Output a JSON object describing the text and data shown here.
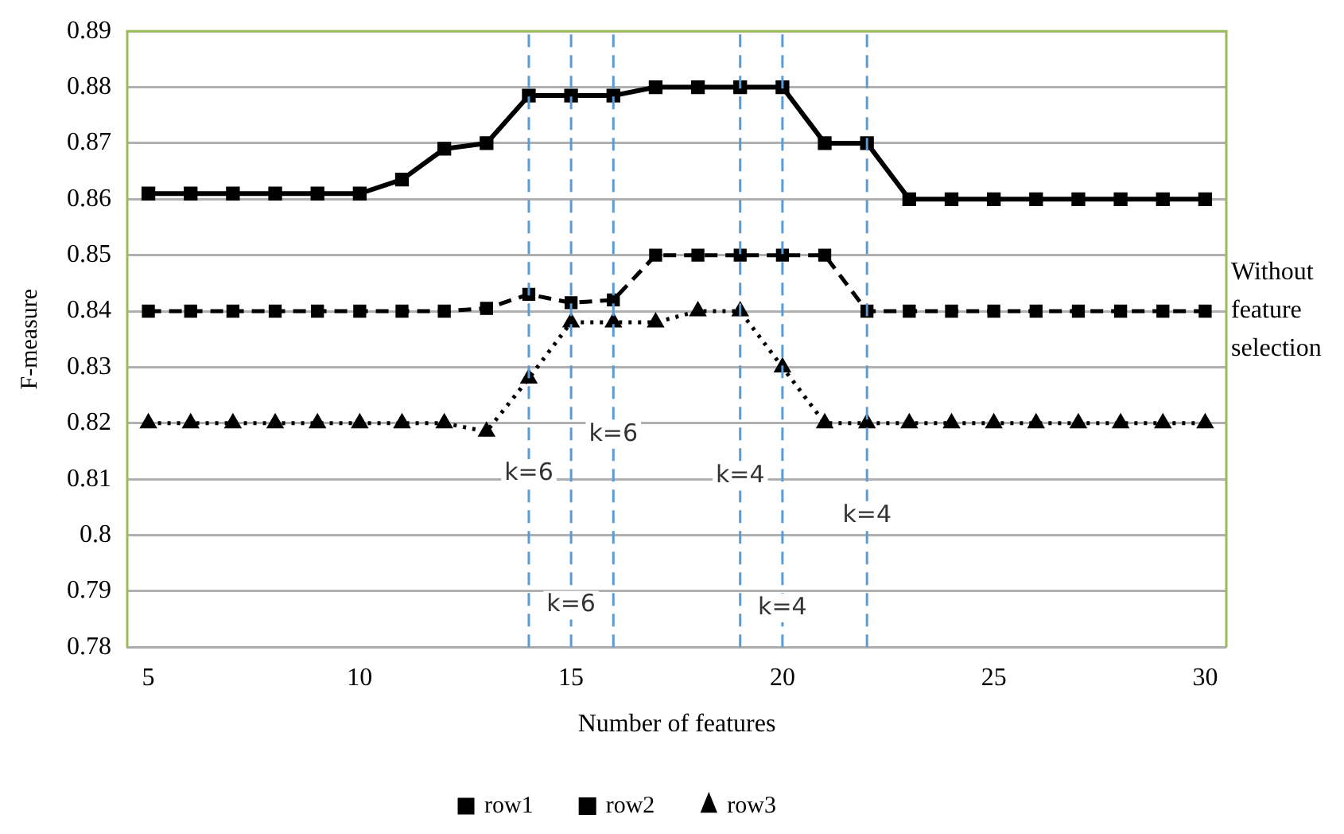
{
  "chart_data": {
    "type": "line",
    "xlabel": "Number of features",
    "ylabel": "F-measure",
    "x": [
      5,
      6,
      7,
      8,
      9,
      10,
      11,
      12,
      13,
      14,
      15,
      16,
      17,
      18,
      19,
      20,
      21,
      22,
      23,
      24,
      25,
      26,
      27,
      28,
      29,
      30
    ],
    "xlim": [
      4.5,
      30.5
    ],
    "xticks": [
      5,
      10,
      15,
      20,
      25,
      30
    ],
    "ylim": [
      0.78,
      0.89
    ],
    "yticks": [
      0.78,
      0.79,
      0.8,
      0.81,
      0.82,
      0.83,
      0.84,
      0.85,
      0.86,
      0.87,
      0.88,
      0.89
    ],
    "grid": "y",
    "legend": "bottom",
    "series": [
      {
        "name": "row1",
        "color": "#000000",
        "marker": "square",
        "line_style": "dashed",
        "values": [
          0.84,
          0.84,
          0.84,
          0.84,
          0.84,
          0.84,
          0.84,
          0.84,
          0.8405,
          0.843,
          0.8415,
          0.842,
          0.85,
          0.85,
          0.85,
          0.85,
          0.85,
          0.84,
          0.84,
          0.84,
          0.84,
          0.84,
          0.84,
          0.84,
          0.84,
          0.84
        ]
      },
      {
        "name": "row2",
        "color": "#000000",
        "marker": "square",
        "line_style": "solid",
        "values": [
          0.861,
          0.861,
          0.861,
          0.861,
          0.861,
          0.861,
          0.8635,
          0.869,
          0.87,
          0.8785,
          0.8785,
          0.8785,
          0.88,
          0.88,
          0.88,
          0.88,
          0.87,
          0.87,
          0.86,
          0.86,
          0.86,
          0.86,
          0.86,
          0.86,
          0.86,
          0.86
        ]
      },
      {
        "name": "row3",
        "color": "#000000",
        "marker": "triangle",
        "line_style": "dotted",
        "values": [
          0.82,
          0.82,
          0.82,
          0.82,
          0.82,
          0.82,
          0.82,
          0.82,
          0.8185,
          0.828,
          0.838,
          0.838,
          0.838,
          0.84,
          0.84,
          0.83,
          0.82,
          0.82,
          0.82,
          0.82,
          0.82,
          0.82,
          0.82,
          0.82,
          0.82,
          0.82
        ]
      }
    ],
    "ref_lines": [
      {
        "axis": "x",
        "value": 14,
        "color": "#5b9bd5",
        "line_style": "dashed"
      },
      {
        "axis": "x",
        "value": 15,
        "color": "#5b9bd5",
        "line_style": "dashed"
      },
      {
        "axis": "x",
        "value": 16,
        "color": "#5b9bd5",
        "line_style": "dashed"
      },
      {
        "axis": "x",
        "value": 19,
        "color": "#5b9bd5",
        "line_style": "dashed"
      },
      {
        "axis": "x",
        "value": 20,
        "color": "#5b9bd5",
        "line_style": "dashed"
      },
      {
        "axis": "x",
        "value": 22,
        "color": "#5b9bd5",
        "line_style": "dashed"
      }
    ],
    "annotations": [
      {
        "text": "k=6",
        "x": 14,
        "y": 0.811
      },
      {
        "text": "k=6",
        "x": 16,
        "y": 0.818
      },
      {
        "text": "k=6",
        "x": 15,
        "y": 0.7875
      },
      {
        "text": "k=4",
        "x": 19,
        "y": 0.8105
      },
      {
        "text": "k=4",
        "x": 22,
        "y": 0.8035
      },
      {
        "text": "k=4",
        "x": 20,
        "y": 0.787
      },
      {
        "text": "Without feature selection",
        "x": 30,
        "y": 0.84
      }
    ]
  }
}
